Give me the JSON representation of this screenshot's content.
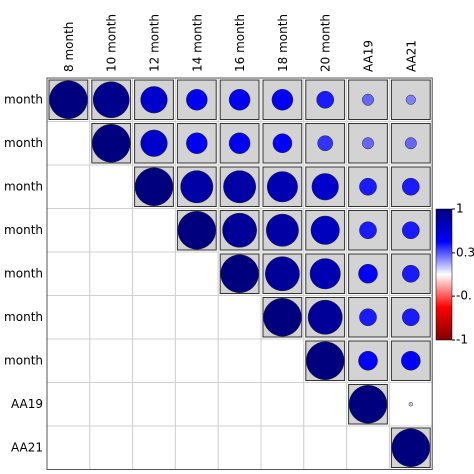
{
  "chart_data": {
    "type": "corrplot",
    "categories": [
      "8 month",
      "10 month",
      "12 month",
      "14 month",
      "16 month",
      "18 month",
      "20 month",
      "AA19",
      "AA21"
    ],
    "values": [
      [
        1,
        0.95,
        0.7,
        0.55,
        0.55,
        0.55,
        0.45,
        0.3,
        0.25
      ],
      [
        null,
        1,
        0.7,
        0.55,
        0.55,
        0.5,
        0.4,
        0.3,
        0.3
      ],
      [
        null,
        null,
        1,
        0.85,
        0.85,
        0.8,
        0.7,
        0.45,
        0.45
      ],
      [
        null,
        null,
        null,
        1,
        0.9,
        0.85,
        0.75,
        0.45,
        0.45
      ],
      [
        null,
        null,
        null,
        null,
        1,
        0.9,
        0.8,
        0.5,
        0.45
      ],
      [
        null,
        null,
        null,
        null,
        null,
        1,
        0.9,
        0.45,
        0.45
      ],
      [
        null,
        null,
        null,
        null,
        null,
        null,
        1,
        0.5,
        0.5
      ],
      [
        null,
        null,
        null,
        null,
        null,
        null,
        null,
        1,
        0.1
      ],
      [
        null,
        null,
        null,
        null,
        null,
        null,
        null,
        null,
        1
      ]
    ],
    "colormap": [
      "#7f0000",
      "#ff0000",
      "#ffffff",
      "#0000ff",
      "#00007f"
    ],
    "zlim": [
      -1,
      1
    ],
    "zticks": [
      1,
      {
        "value": 0.33,
        "label": "0.3"
      },
      {
        "value": -0.33,
        "label": "-0."
      },
      -1
    ],
    "cell_background": "#d3d3d3"
  }
}
